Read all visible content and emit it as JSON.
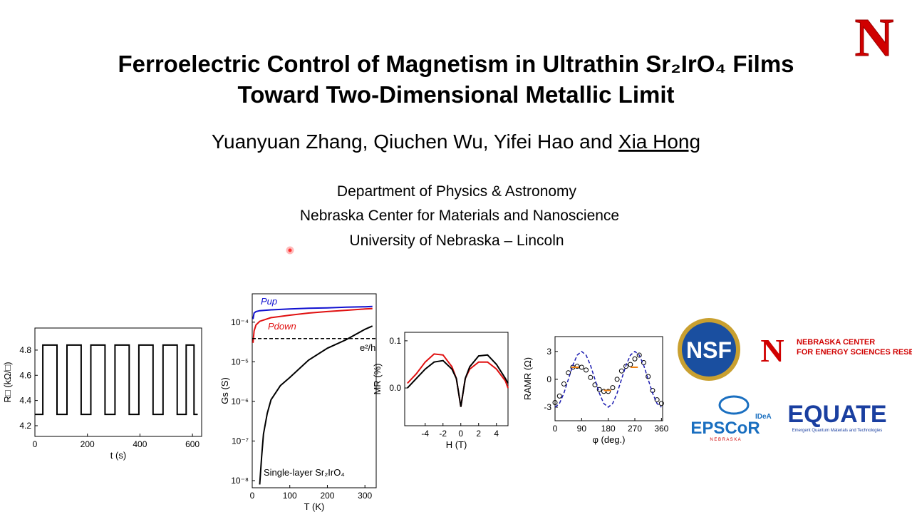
{
  "title": [
    "Ferroelectric Control of Magnetism in Ultrathin Sr₂IrO₄ Films",
    "Toward Two-Dimensional Metallic Limit"
  ],
  "authors": "Yuanyuan Zhang, Qiuchen Wu, Yifei Hao and",
  "presenter": "Xia Hong",
  "affiliations": [
    "Department of Physics & Astronomy",
    "Nebraska Center for Materials and Nanoscience",
    "University of Nebraska – Lincoln"
  ],
  "logos": {
    "nebraska": "N",
    "nsf": "NSF",
    "ncesr": [
      "N",
      "NEBRASKA CENTER",
      "FOR ENERGY SCIENCES RESEARCH"
    ],
    "epscor": [
      "IDeA",
      "EPSCoR",
      "N E B R A S K A"
    ],
    "equate": [
      "EQUATE",
      "Emergent Quantum Materials and Technologies"
    ]
  },
  "chart_data": [
    {
      "type": "line",
      "xlabel": "t (s)",
      "ylabel": "R□ (kΩ/□)",
      "xlim": [
        0,
        635
      ],
      "ylim": [
        4.115,
        4.975
      ],
      "xticks": [
        0,
        200,
        400,
        600
      ],
      "yticks": [
        4.2,
        4.4,
        4.6,
        4.8
      ],
      "series": [
        {
          "color": "#000000",
          "style": "line",
          "x": [
            0,
            30,
            30,
            84,
            84,
            122,
            122,
            176,
            176,
            213,
            213,
            267,
            267,
            305,
            305,
            359,
            359,
            396,
            396,
            450,
            450,
            488,
            488,
            542,
            542,
            576,
            576,
            606,
            606,
            620
          ],
          "values": [
            4.29,
            4.29,
            4.84,
            4.84,
            4.29,
            4.29,
            4.84,
            4.84,
            4.29,
            4.29,
            4.84,
            4.84,
            4.29,
            4.29,
            4.84,
            4.84,
            4.29,
            4.29,
            4.84,
            4.84,
            4.29,
            4.29,
            4.84,
            4.84,
            4.29,
            4.29,
            4.84,
            4.84,
            4.29,
            4.29
          ]
        }
      ]
    },
    {
      "type": "line",
      "xlabel": "T (K)",
      "ylabel": "Gs (S)",
      "ylog": true,
      "xlim": [
        0,
        330
      ],
      "ylim": [
        6.6e-09,
        0.00052
      ],
      "xticks": [
        0,
        100,
        200,
        300
      ],
      "yticks": [
        {
          "value": 1e-08,
          "label": "10⁻⁸"
        },
        {
          "value": 1e-07,
          "label": "10⁻⁷"
        },
        {
          "value": 1e-06,
          "label": "10⁻⁶"
        },
        {
          "value": 1e-05,
          "label": "10⁻⁵"
        },
        {
          "value": 0.0001,
          "label": "10⁻⁴"
        }
      ],
      "series": [
        {
          "name": "Pup",
          "color": "#1010d0",
          "style": "line",
          "x": [
            2,
            5,
            10,
            20,
            50,
            100,
            150,
            200,
            250,
            300,
            320
          ],
          "values": [
            0.00012,
            0.00017,
            0.000185,
            0.000195,
            0.000205,
            0.000215,
            0.000225,
            0.00023,
            0.00024,
            0.000245,
            0.00025
          ]
        },
        {
          "name": "Pdown",
          "color": "#e01010",
          "style": "line",
          "x": [
            2,
            5,
            10,
            20,
            50,
            100,
            150,
            200,
            250,
            300,
            320
          ],
          "values": [
            3e-05,
            6e-05,
            8.5e-05,
            0.000105,
            0.00013,
            0.00015,
            0.00017,
            0.000185,
            0.0002,
            0.000215,
            0.00022
          ]
        },
        {
          "name": "Single-layer Sr₂IrO₄",
          "color": "#000000",
          "style": "line",
          "x": [
            20,
            25,
            30,
            40,
            50,
            75,
            100,
            150,
            200,
            250,
            300,
            320
          ],
          "values": [
            8e-09,
            4e-08,
            1.5e-07,
            5e-07,
            1.1e-06,
            2.5e-06,
            4e-06,
            1.1e-05,
            2.2e-05,
            3.6e-05,
            6.6e-05,
            8e-05
          ]
        },
        {
          "name": "e²/h",
          "color": "#000000",
          "style": "dashed",
          "x": [
            0,
            330
          ],
          "values": [
            3.87e-05,
            3.87e-05
          ]
        }
      ]
    },
    {
      "type": "line",
      "xlabel": "H (T)",
      "ylabel": "MR (%)",
      "xlim": [
        -6.3,
        5.3
      ],
      "ylim": [
        -0.08,
        0.118
      ],
      "xticks": [
        -4,
        -2,
        0,
        2,
        4
      ],
      "yticks": [
        {
          "value": 0,
          "label": "0.0"
        },
        0.1
      ],
      "series": [
        {
          "color": "#e01010",
          "style": "line",
          "x": [
            -6,
            -5,
            -4,
            -3,
            -2,
            -1,
            -0.5,
            0,
            0.5,
            1,
            2,
            3,
            4,
            5,
            5.3
          ],
          "values": [
            0.01,
            0.03,
            0.055,
            0.072,
            0.07,
            0.045,
            0.02,
            -0.04,
            0.02,
            0.04,
            0.055,
            0.055,
            0.04,
            0.015,
            0
          ]
        },
        {
          "color": "#000000",
          "style": "line",
          "x": [
            -6,
            -5,
            -4,
            -3,
            -2,
            -1,
            -0.5,
            0,
            0.5,
            1,
            2,
            3,
            4,
            5,
            5.3
          ],
          "values": [
            0,
            0.02,
            0.04,
            0.055,
            0.058,
            0.04,
            0.02,
            -0.04,
            0.02,
            0.045,
            0.068,
            0.07,
            0.05,
            0.02,
            0.01
          ]
        }
      ]
    },
    {
      "type": "scatter",
      "xlabel": "φ (deg.)",
      "ylabel": "RAMR (Ω)",
      "xlim": [
        0,
        364
      ],
      "ylim": [
        -4.46,
        4.6
      ],
      "xticks": [
        0,
        90,
        180,
        270,
        360
      ],
      "yticks": [
        -3,
        0,
        3
      ],
      "series": [
        {
          "color": "#000000",
          "style": "circles",
          "x": [
            0,
            15,
            30,
            45,
            60,
            75,
            90,
            105,
            120,
            135,
            150,
            165,
            180,
            195,
            210,
            225,
            240,
            255,
            270,
            285,
            300,
            315,
            330,
            345,
            360
          ],
          "values": [
            -2.5,
            -1.8,
            -0.5,
            0.7,
            1.3,
            1.4,
            1.3,
            1.0,
            0.2,
            -0.6,
            -1.1,
            -1.3,
            -1.3,
            -0.9,
            0,
            0.9,
            1.4,
            1.6,
            2.2,
            2.6,
            1.8,
            0.3,
            -1.2,
            -2.2,
            -2.6
          ]
        },
        {
          "color": "#1a1ab0",
          "style": "dashed",
          "x": [
            0,
            15,
            30,
            45,
            60,
            75,
            90,
            105,
            120,
            135,
            150,
            165,
            180,
            195,
            210,
            225,
            240,
            255,
            270,
            285,
            300,
            315,
            330,
            345,
            360
          ],
          "values": [
            -3,
            -2.6,
            -1.5,
            0,
            1.5,
            2.6,
            3,
            2.6,
            1.5,
            0,
            -1.5,
            -2.6,
            -3,
            -2.6,
            -1.5,
            0,
            1.5,
            2.6,
            3,
            2.6,
            1.5,
            0,
            -1.5,
            -2.6,
            -3
          ]
        },
        {
          "color": "#f08010",
          "style": "line",
          "x": [
            55,
            80,
            null,
            165,
            190,
            null,
            255,
            280
          ],
          "values": [
            1.3,
            1.3,
            null,
            -1.2,
            -1.2,
            null,
            1.3,
            1.3
          ]
        }
      ]
    }
  ]
}
